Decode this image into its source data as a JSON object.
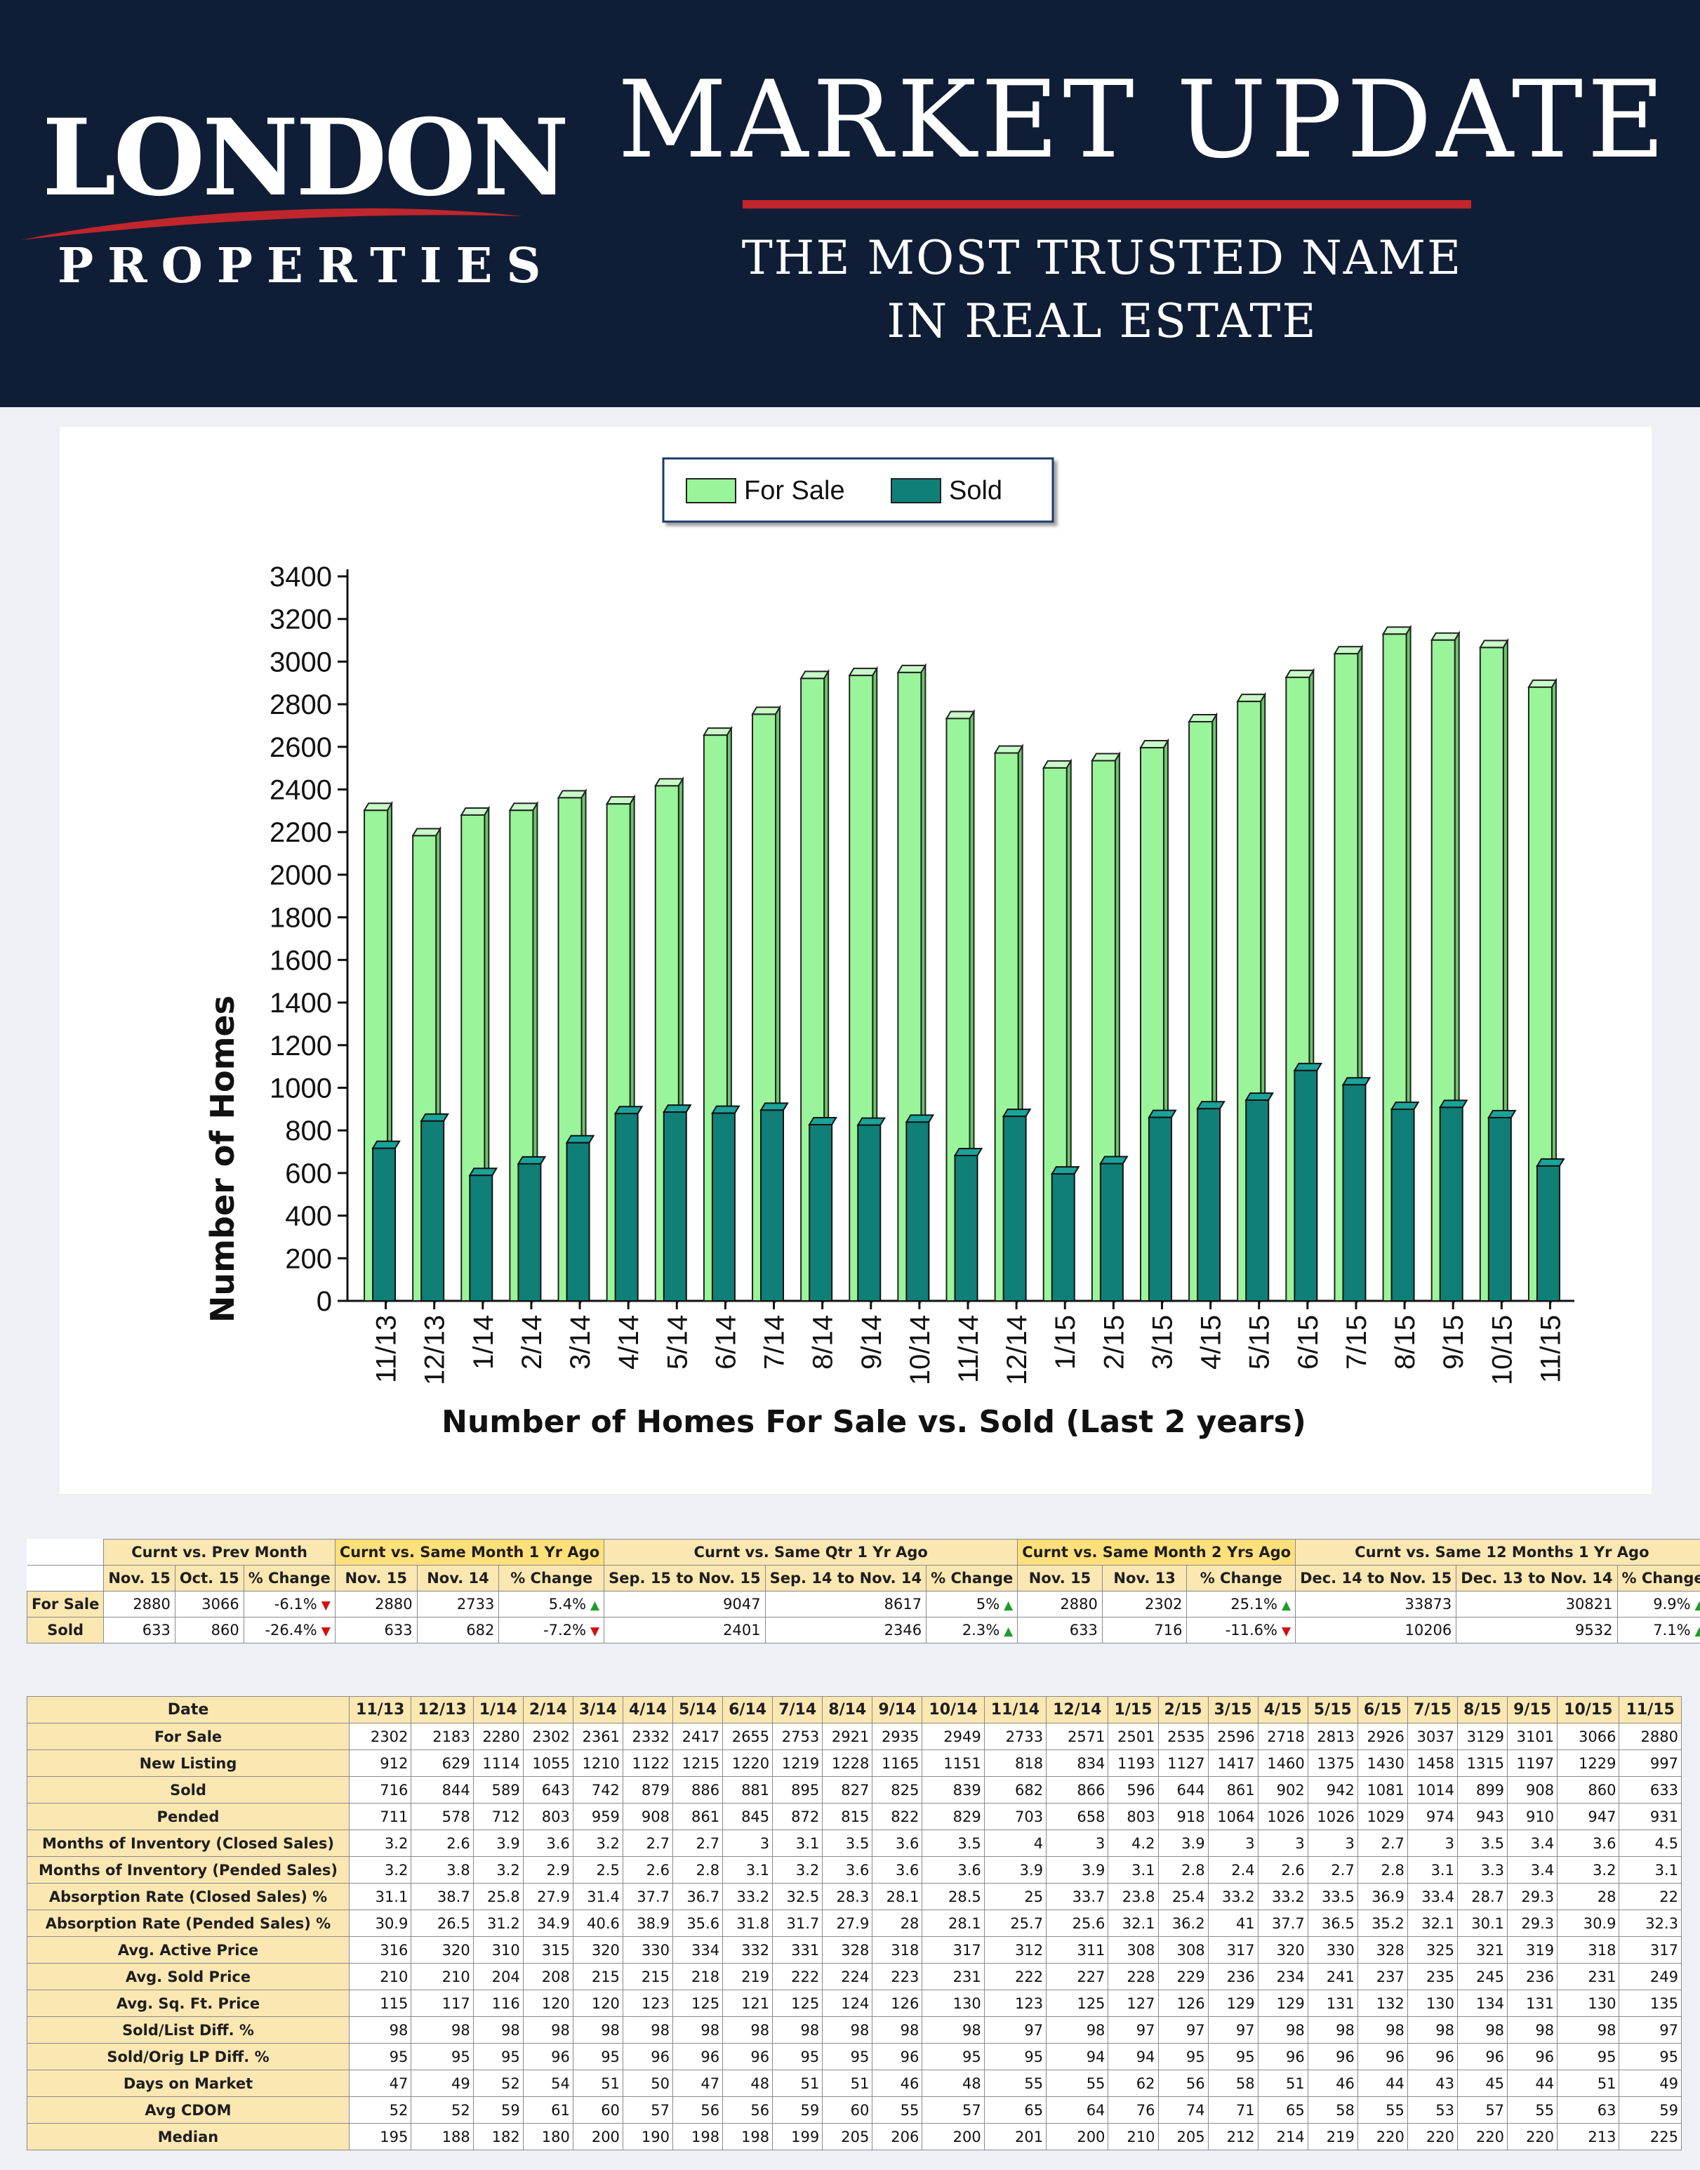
{
  "header": {
    "logo_main": "LONDON",
    "logo_sub": "PROPERTIES",
    "title": "MARKET UPDATE",
    "tagline_1": "THE MOST TRUSTED NAME",
    "tagline_2": "IN REAL ESTATE",
    "colors": {
      "background": "#0f1e36",
      "accent": "#c0262c"
    }
  },
  "chart_data": {
    "type": "bar",
    "title": "Number of Homes For Sale vs. Sold (Last 2 years)",
    "xlabel": "",
    "ylabel": "Number of Homes",
    "ylim": [
      0,
      3400
    ],
    "yticks": [
      0,
      200,
      400,
      600,
      800,
      1000,
      1200,
      1400,
      1600,
      1800,
      2000,
      2200,
      2400,
      2600,
      2800,
      3000,
      3200,
      3400
    ],
    "categories": [
      "11/13",
      "12/13",
      "1/14",
      "2/14",
      "3/14",
      "4/14",
      "5/14",
      "6/14",
      "7/14",
      "8/14",
      "9/14",
      "10/14",
      "11/14",
      "12/14",
      "1/15",
      "2/15",
      "3/15",
      "4/15",
      "5/15",
      "6/15",
      "7/15",
      "8/15",
      "9/15",
      "10/15",
      "11/15"
    ],
    "series": [
      {
        "name": "For Sale",
        "color": "#9af59a",
        "values": [
          2302,
          2183,
          2280,
          2302,
          2361,
          2332,
          2417,
          2655,
          2753,
          2921,
          2935,
          2949,
          2733,
          2571,
          2501,
          2535,
          2596,
          2718,
          2813,
          2926,
          3037,
          3129,
          3101,
          3066,
          2880
        ]
      },
      {
        "name": "Sold",
        "color": "#0f7f78",
        "values": [
          716,
          844,
          589,
          643,
          742,
          879,
          886,
          881,
          895,
          827,
          825,
          839,
          682,
          866,
          596,
          644,
          861,
          902,
          942,
          1081,
          1014,
          899,
          908,
          860,
          633
        ]
      }
    ],
    "legend": "top-center",
    "grid": false
  },
  "summary": {
    "row_labels": [
      "For Sale",
      "Sold"
    ],
    "groups": [
      {
        "title": "Curnt vs. Prev Month",
        "highlight": false,
        "cols": [
          "Nov. 15",
          "Oct. 15",
          "% Change"
        ],
        "rows": [
          [
            "2880",
            "3066",
            "-6.1%"
          ],
          [
            "633",
            "860",
            "-26.4%"
          ]
        ],
        "dirs": [
          "down",
          "down"
        ]
      },
      {
        "title": "Curnt vs. Same Month 1 Yr Ago",
        "highlight": true,
        "cols": [
          "Nov. 15",
          "Nov. 14",
          "% Change"
        ],
        "rows": [
          [
            "2880",
            "2733",
            "5.4%"
          ],
          [
            "633",
            "682",
            "-7.2%"
          ]
        ],
        "dirs": [
          "up",
          "down"
        ]
      },
      {
        "title": "Curnt vs. Same Qtr 1 Yr Ago",
        "highlight": false,
        "cols": [
          "Sep. 15 to Nov. 15",
          "Sep. 14 to Nov. 14",
          "% Change"
        ],
        "rows": [
          [
            "9047",
            "8617",
            "5%"
          ],
          [
            "2401",
            "2346",
            "2.3%"
          ]
        ],
        "dirs": [
          "up",
          "up"
        ]
      },
      {
        "title": "Curnt vs. Same Month 2 Yrs Ago",
        "highlight": true,
        "cols": [
          "Nov. 15",
          "Nov. 13",
          "% Change"
        ],
        "rows": [
          [
            "2880",
            "2302",
            "25.1%"
          ],
          [
            "633",
            "716",
            "-11.6%"
          ]
        ],
        "dirs": [
          "up",
          "down"
        ]
      },
      {
        "title": "Curnt vs. Same 12 Months 1 Yr Ago",
        "highlight": false,
        "cols": [
          "Dec. 14 to Nov. 15",
          "Dec. 13 to Nov. 14",
          "% Change"
        ],
        "rows": [
          [
            "33873",
            "30821",
            "9.9%"
          ],
          [
            "10206",
            "9532",
            "7.1%"
          ]
        ],
        "dirs": [
          "up",
          "up"
        ]
      }
    ]
  },
  "stats": {
    "date_label": "Date",
    "dates": [
      "11/13",
      "12/13",
      "1/14",
      "2/14",
      "3/14",
      "4/14",
      "5/14",
      "6/14",
      "7/14",
      "8/14",
      "9/14",
      "10/14",
      "11/14",
      "12/14",
      "1/15",
      "2/15",
      "3/15",
      "4/15",
      "5/15",
      "6/15",
      "7/15",
      "8/15",
      "9/15",
      "10/15",
      "11/15"
    ],
    "rows": [
      {
        "label": "For Sale",
        "values": [
          "2302",
          "2183",
          "2280",
          "2302",
          "2361",
          "2332",
          "2417",
          "2655",
          "2753",
          "2921",
          "2935",
          "2949",
          "2733",
          "2571",
          "2501",
          "2535",
          "2596",
          "2718",
          "2813",
          "2926",
          "3037",
          "3129",
          "3101",
          "3066",
          "2880"
        ]
      },
      {
        "label": "New Listing",
        "values": [
          "912",
          "629",
          "1114",
          "1055",
          "1210",
          "1122",
          "1215",
          "1220",
          "1219",
          "1228",
          "1165",
          "1151",
          "818",
          "834",
          "1193",
          "1127",
          "1417",
          "1460",
          "1375",
          "1430",
          "1458",
          "1315",
          "1197",
          "1229",
          "997"
        ]
      },
      {
        "label": "Sold",
        "values": [
          "716",
          "844",
          "589",
          "643",
          "742",
          "879",
          "886",
          "881",
          "895",
          "827",
          "825",
          "839",
          "682",
          "866",
          "596",
          "644",
          "861",
          "902",
          "942",
          "1081",
          "1014",
          "899",
          "908",
          "860",
          "633"
        ]
      },
      {
        "label": "Pended",
        "values": [
          "711",
          "578",
          "712",
          "803",
          "959",
          "908",
          "861",
          "845",
          "872",
          "815",
          "822",
          "829",
          "703",
          "658",
          "803",
          "918",
          "1064",
          "1026",
          "1026",
          "1029",
          "974",
          "943",
          "910",
          "947",
          "931"
        ]
      },
      {
        "label": "Months of Inventory (Closed Sales)",
        "values": [
          "3.2",
          "2.6",
          "3.9",
          "3.6",
          "3.2",
          "2.7",
          "2.7",
          "3",
          "3.1",
          "3.5",
          "3.6",
          "3.5",
          "4",
          "3",
          "4.2",
          "3.9",
          "3",
          "3",
          "3",
          "2.7",
          "3",
          "3.5",
          "3.4",
          "3.6",
          "4.5"
        ]
      },
      {
        "label": "Months of Inventory (Pended Sales)",
        "values": [
          "3.2",
          "3.8",
          "3.2",
          "2.9",
          "2.5",
          "2.6",
          "2.8",
          "3.1",
          "3.2",
          "3.6",
          "3.6",
          "3.6",
          "3.9",
          "3.9",
          "3.1",
          "2.8",
          "2.4",
          "2.6",
          "2.7",
          "2.8",
          "3.1",
          "3.3",
          "3.4",
          "3.2",
          "3.1"
        ]
      },
      {
        "label": "Absorption Rate (Closed Sales) %",
        "values": [
          "31.1",
          "38.7",
          "25.8",
          "27.9",
          "31.4",
          "37.7",
          "36.7",
          "33.2",
          "32.5",
          "28.3",
          "28.1",
          "28.5",
          "25",
          "33.7",
          "23.8",
          "25.4",
          "33.2",
          "33.2",
          "33.5",
          "36.9",
          "33.4",
          "28.7",
          "29.3",
          "28",
          "22"
        ]
      },
      {
        "label": "Absorption Rate (Pended Sales) %",
        "values": [
          "30.9",
          "26.5",
          "31.2",
          "34.9",
          "40.6",
          "38.9",
          "35.6",
          "31.8",
          "31.7",
          "27.9",
          "28",
          "28.1",
          "25.7",
          "25.6",
          "32.1",
          "36.2",
          "41",
          "37.7",
          "36.5",
          "35.2",
          "32.1",
          "30.1",
          "29.3",
          "30.9",
          "32.3"
        ]
      },
      {
        "label": "Avg. Active Price",
        "values": [
          "316",
          "320",
          "310",
          "315",
          "320",
          "330",
          "334",
          "332",
          "331",
          "328",
          "318",
          "317",
          "312",
          "311",
          "308",
          "308",
          "317",
          "320",
          "330",
          "328",
          "325",
          "321",
          "319",
          "318",
          "317"
        ]
      },
      {
        "label": "Avg. Sold Price",
        "values": [
          "210",
          "210",
          "204",
          "208",
          "215",
          "215",
          "218",
          "219",
          "222",
          "224",
          "223",
          "231",
          "222",
          "227",
          "228",
          "229",
          "236",
          "234",
          "241",
          "237",
          "235",
          "245",
          "236",
          "231",
          "249"
        ]
      },
      {
        "label": "Avg. Sq. Ft. Price",
        "values": [
          "115",
          "117",
          "116",
          "120",
          "120",
          "123",
          "125",
          "121",
          "125",
          "124",
          "126",
          "130",
          "123",
          "125",
          "127",
          "126",
          "129",
          "129",
          "131",
          "132",
          "130",
          "134",
          "131",
          "130",
          "135"
        ]
      },
      {
        "label": "Sold/List Diff. %",
        "values": [
          "98",
          "98",
          "98",
          "98",
          "98",
          "98",
          "98",
          "98",
          "98",
          "98",
          "98",
          "98",
          "97",
          "98",
          "97",
          "97",
          "97",
          "98",
          "98",
          "98",
          "98",
          "98",
          "98",
          "98",
          "97"
        ]
      },
      {
        "label": "Sold/Orig LP Diff. %",
        "values": [
          "95",
          "95",
          "95",
          "96",
          "95",
          "96",
          "96",
          "96",
          "95",
          "95",
          "96",
          "95",
          "95",
          "94",
          "94",
          "95",
          "95",
          "96",
          "96",
          "96",
          "96",
          "96",
          "96",
          "95",
          "95"
        ]
      },
      {
        "label": "Days on Market",
        "values": [
          "47",
          "49",
          "52",
          "54",
          "51",
          "50",
          "47",
          "48",
          "51",
          "51",
          "46",
          "48",
          "55",
          "55",
          "62",
          "56",
          "58",
          "51",
          "46",
          "44",
          "43",
          "45",
          "44",
          "51",
          "49"
        ]
      },
      {
        "label": "Avg CDOM",
        "values": [
          "52",
          "52",
          "59",
          "61",
          "60",
          "57",
          "56",
          "56",
          "59",
          "60",
          "55",
          "57",
          "65",
          "64",
          "76",
          "74",
          "71",
          "65",
          "58",
          "55",
          "53",
          "57",
          "55",
          "63",
          "59"
        ]
      },
      {
        "label": "Median",
        "values": [
          "195",
          "188",
          "182",
          "180",
          "200",
          "190",
          "198",
          "198",
          "199",
          "205",
          "206",
          "200",
          "201",
          "200",
          "210",
          "205",
          "212",
          "214",
          "219",
          "220",
          "220",
          "220",
          "220",
          "213",
          "225"
        ]
      }
    ]
  }
}
